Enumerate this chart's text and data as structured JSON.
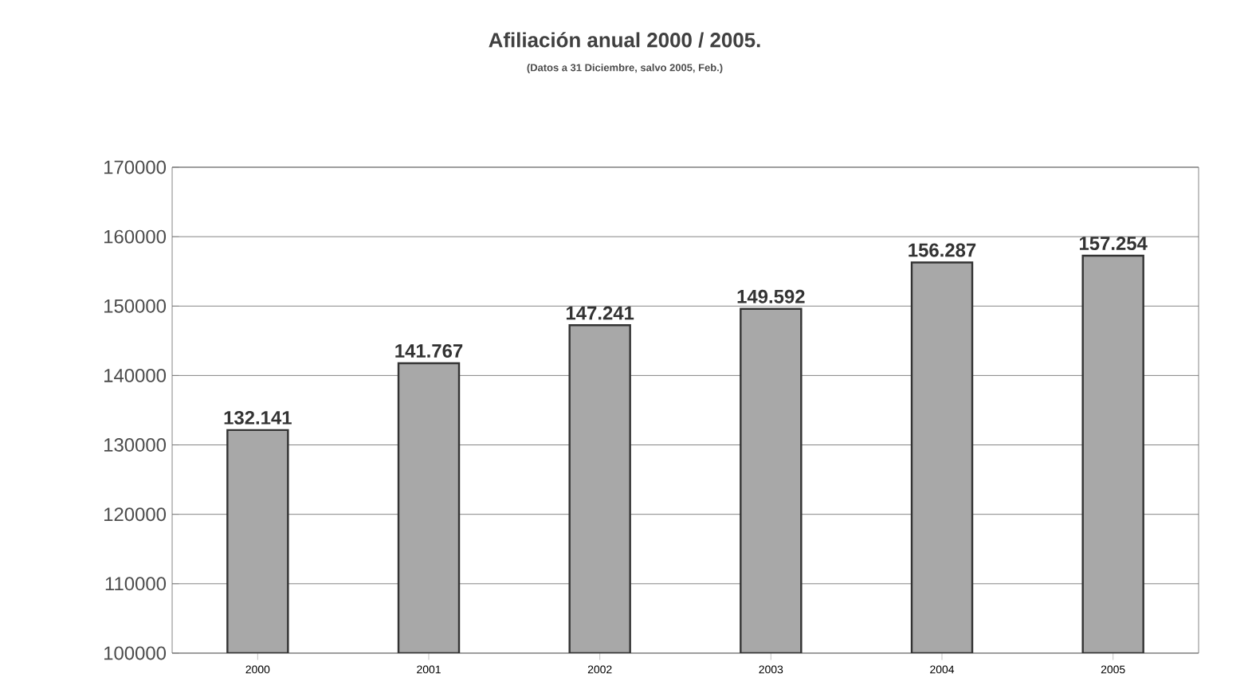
{
  "chart_data": {
    "type": "bar",
    "title": "Afiliación anual 2000 / 2005.",
    "subtitle": "(Datos a 31 Diciembre, salvo 2005, Feb.)",
    "categories": [
      "2000",
      "2001",
      "2002",
      "2003",
      "2004",
      "2005"
    ],
    "values": [
      132141,
      141767,
      147241,
      149592,
      156287,
      157254
    ],
    "value_labels": [
      "132.141",
      "141.767",
      "147.241",
      "149.592",
      "156.287",
      "157.254"
    ],
    "color": "#a8a8a8",
    "ylim": [
      100000,
      170000
    ],
    "yticks": [
      100000,
      110000,
      120000,
      130000,
      140000,
      150000,
      160000,
      170000
    ],
    "grid": "y"
  }
}
